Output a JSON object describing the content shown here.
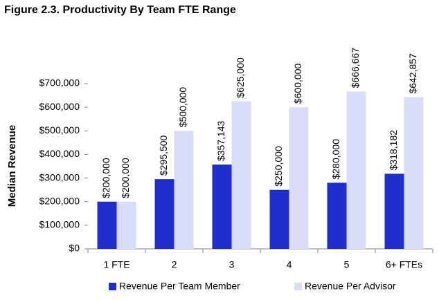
{
  "chart_data": {
    "type": "bar",
    "title": "Figure 2.3. Productivity By Team FTE Range",
    "y_label": "Median Revenue",
    "categories": [
      "1 FTE",
      "2",
      "3",
      "4",
      "5",
      "6+ FTEs"
    ],
    "series": [
      {
        "name": "Revenue Per Team Member",
        "color": "#1f2fcf",
        "values": [
          200000,
          295500,
          357143,
          250000,
          280000,
          318182
        ],
        "value_labels": [
          "$200,000",
          "$295,500",
          "$357,143",
          "$250,000",
          "$280,000",
          "$318,182"
        ]
      },
      {
        "name": "Revenue Per Advisor",
        "color": "#d9dcf7",
        "values": [
          200000,
          500000,
          625000,
          600000,
          666667,
          642857
        ],
        "value_labels": [
          "$200,000",
          "$500,000",
          "$625,000",
          "$600,000",
          "$666,667",
          "$642,857"
        ]
      }
    ],
    "ylim": [
      0,
      700000
    ],
    "yticks": [
      {
        "value": 0,
        "label": "$0"
      },
      {
        "value": 100000,
        "label": "$100,000"
      },
      {
        "value": 200000,
        "label": "$200,000"
      },
      {
        "value": 300000,
        "label": "$300,000"
      },
      {
        "value": 400000,
        "label": "$400,000"
      },
      {
        "value": 500000,
        "label": "$500,000"
      },
      {
        "value": 600000,
        "label": "$600,000"
      },
      {
        "value": 700000,
        "label": "$700,000"
      }
    ],
    "legend": "bottom"
  }
}
